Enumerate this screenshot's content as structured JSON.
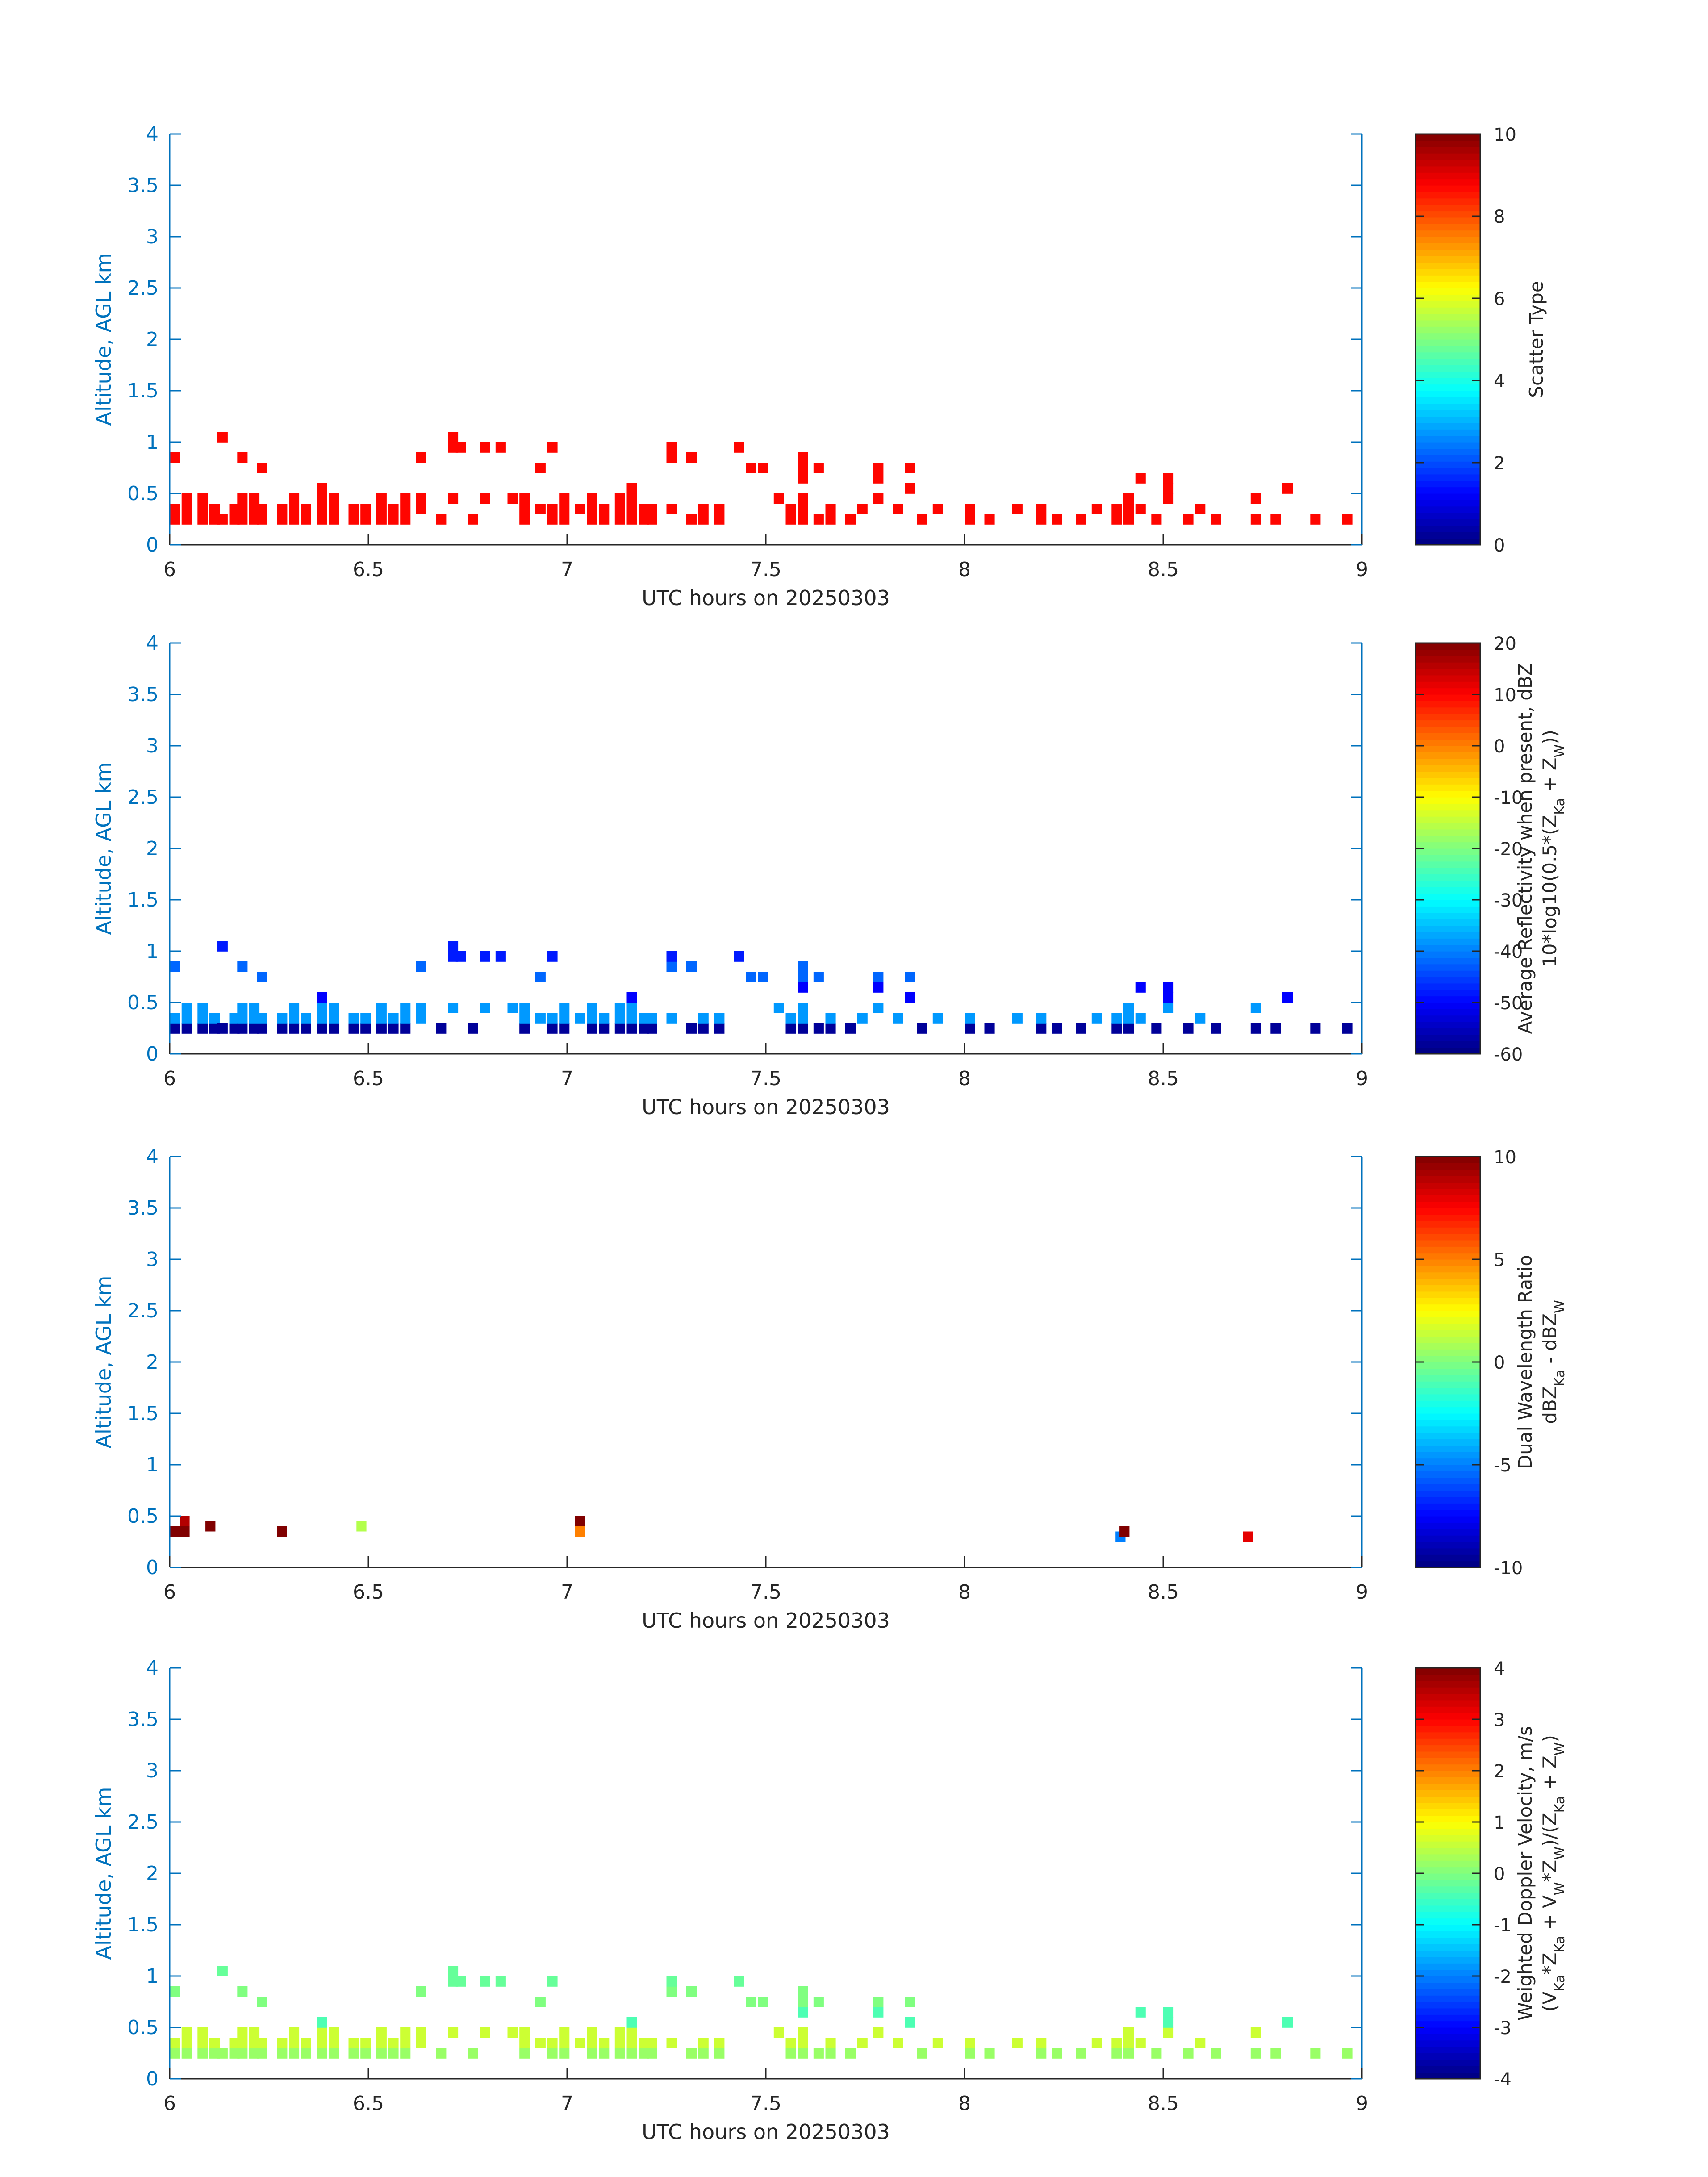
{
  "figure": {
    "axis_color": "#0072BD",
    "text_color": "#262626",
    "colormap": "jet"
  },
  "chart_data": [
    {
      "type": "heatmap",
      "panel_id": "scatter-type",
      "xlabel": "UTC hours on 20250303",
      "ylabel": "Altitude, AGL km",
      "xlim": [
        6,
        9
      ],
      "ylim": [
        0,
        4
      ],
      "xticks": [
        "6",
        "6.5",
        "7",
        "7.5",
        "8",
        "8.5",
        "9"
      ],
      "yticks": [
        "0",
        "0.5",
        "1",
        "1.5",
        "2",
        "2.5",
        "3",
        "3.5",
        "4"
      ],
      "colorbar": {
        "label_lines": [
          "Scatter Type"
        ],
        "ticks": [
          "0",
          "2",
          "4",
          "6",
          "8",
          "10"
        ],
        "range": [
          0,
          10
        ]
      },
      "cell_width_hours": 0.025,
      "cell_height_km": 0.1,
      "base_value": 8.7,
      "columns": [
        {
          "x": 6.0,
          "bins": [
            [
              0.2,
              0.4
            ],
            [
              0.8,
              0.9
            ]
          ]
        },
        {
          "x": 6.03,
          "bins": [
            [
              0.2,
              0.5
            ]
          ]
        },
        {
          "x": 6.07,
          "bins": [
            [
              0.2,
              0.5
            ]
          ]
        },
        {
          "x": 6.1,
          "bins": [
            [
              0.2,
              0.4
            ]
          ]
        },
        {
          "x": 6.12,
          "bins": [
            [
              0.2,
              0.3
            ],
            [
              1.0,
              1.1
            ]
          ]
        },
        {
          "x": 6.15,
          "bins": [
            [
              0.2,
              0.4
            ]
          ]
        },
        {
          "x": 6.17,
          "bins": [
            [
              0.2,
              0.5
            ],
            [
              0.8,
              0.9
            ]
          ]
        },
        {
          "x": 6.2,
          "bins": [
            [
              0.2,
              0.5
            ]
          ]
        },
        {
          "x": 6.22,
          "bins": [
            [
              0.2,
              0.4
            ],
            [
              0.7,
              0.8
            ]
          ]
        },
        {
          "x": 6.27,
          "bins": [
            [
              0.2,
              0.4
            ]
          ]
        },
        {
          "x": 6.3,
          "bins": [
            [
              0.2,
              0.5
            ]
          ]
        },
        {
          "x": 6.33,
          "bins": [
            [
              0.2,
              0.4
            ]
          ]
        },
        {
          "x": 6.37,
          "bins": [
            [
              0.2,
              0.6
            ]
          ]
        },
        {
          "x": 6.4,
          "bins": [
            [
              0.2,
              0.5
            ]
          ]
        },
        {
          "x": 6.45,
          "bins": [
            [
              0.2,
              0.4
            ]
          ]
        },
        {
          "x": 6.48,
          "bins": [
            [
              0.2,
              0.4
            ]
          ]
        },
        {
          "x": 6.52,
          "bins": [
            [
              0.2,
              0.5
            ]
          ]
        },
        {
          "x": 6.55,
          "bins": [
            [
              0.2,
              0.4
            ]
          ]
        },
        {
          "x": 6.58,
          "bins": [
            [
              0.2,
              0.5
            ]
          ]
        },
        {
          "x": 6.62,
          "bins": [
            [
              0.3,
              0.5
            ],
            [
              0.8,
              0.9
            ]
          ]
        },
        {
          "x": 6.67,
          "bins": [
            [
              0.2,
              0.3
            ]
          ]
        },
        {
          "x": 6.7,
          "bins": [
            [
              0.4,
              0.5
            ],
            [
              0.9,
              1.1
            ]
          ]
        },
        {
          "x": 6.72,
          "bins": [
            [
              0.9,
              1.0
            ]
          ]
        },
        {
          "x": 6.75,
          "bins": [
            [
              0.2,
              0.3
            ]
          ]
        },
        {
          "x": 6.78,
          "bins": [
            [
              0.4,
              0.5
            ],
            [
              0.9,
              1.0
            ]
          ]
        },
        {
          "x": 6.82,
          "bins": [
            [
              0.9,
              1.0
            ]
          ]
        },
        {
          "x": 6.85,
          "bins": [
            [
              0.4,
              0.5
            ]
          ]
        },
        {
          "x": 6.88,
          "bins": [
            [
              0.2,
              0.5
            ]
          ]
        },
        {
          "x": 6.92,
          "bins": [
            [
              0.3,
              0.4
            ],
            [
              0.7,
              0.8
            ]
          ]
        },
        {
          "x": 6.95,
          "bins": [
            [
              0.2,
              0.4
            ],
            [
              0.9,
              1.0
            ]
          ]
        },
        {
          "x": 6.98,
          "bins": [
            [
              0.2,
              0.5
            ]
          ]
        },
        {
          "x": 7.02,
          "bins": [
            [
              0.3,
              0.4
            ]
          ]
        },
        {
          "x": 7.05,
          "bins": [
            [
              0.2,
              0.5
            ]
          ]
        },
        {
          "x": 7.08,
          "bins": [
            [
              0.2,
              0.4
            ]
          ]
        },
        {
          "x": 7.12,
          "bins": [
            [
              0.2,
              0.5
            ]
          ]
        },
        {
          "x": 7.15,
          "bins": [
            [
              0.2,
              0.6
            ]
          ]
        },
        {
          "x": 7.18,
          "bins": [
            [
              0.2,
              0.4
            ]
          ]
        },
        {
          "x": 7.2,
          "bins": [
            [
              0.2,
              0.4
            ]
          ]
        },
        {
          "x": 7.25,
          "bins": [
            [
              0.3,
              0.4
            ],
            [
              0.8,
              1.0
            ]
          ]
        },
        {
          "x": 7.3,
          "bins": [
            [
              0.2,
              0.3
            ],
            [
              0.8,
              0.9
            ]
          ]
        },
        {
          "x": 7.33,
          "bins": [
            [
              0.2,
              0.4
            ]
          ]
        },
        {
          "x": 7.37,
          "bins": [
            [
              0.2,
              0.4
            ]
          ]
        },
        {
          "x": 7.42,
          "bins": [
            [
              0.9,
              1.0
            ]
          ]
        },
        {
          "x": 7.45,
          "bins": [
            [
              0.7,
              0.8
            ]
          ]
        },
        {
          "x": 7.48,
          "bins": [
            [
              0.7,
              0.8
            ]
          ]
        },
        {
          "x": 7.52,
          "bins": [
            [
              0.4,
              0.5
            ]
          ]
        },
        {
          "x": 7.55,
          "bins": [
            [
              0.2,
              0.4
            ]
          ]
        },
        {
          "x": 7.58,
          "bins": [
            [
              0.2,
              0.5
            ],
            [
              0.6,
              0.9
            ]
          ]
        },
        {
          "x": 7.62,
          "bins": [
            [
              0.2,
              0.3
            ],
            [
              0.7,
              0.8
            ]
          ]
        },
        {
          "x": 7.65,
          "bins": [
            [
              0.2,
              0.4
            ]
          ]
        },
        {
          "x": 7.7,
          "bins": [
            [
              0.2,
              0.3
            ]
          ]
        },
        {
          "x": 7.73,
          "bins": [
            [
              0.3,
              0.4
            ]
          ]
        },
        {
          "x": 7.77,
          "bins": [
            [
              0.4,
              0.5
            ],
            [
              0.6,
              0.8
            ]
          ]
        },
        {
          "x": 7.82,
          "bins": [
            [
              0.3,
              0.4
            ]
          ]
        },
        {
          "x": 7.85,
          "bins": [
            [
              0.5,
              0.6
            ],
            [
              0.7,
              0.8
            ]
          ]
        },
        {
          "x": 7.88,
          "bins": [
            [
              0.2,
              0.3
            ]
          ]
        },
        {
          "x": 7.92,
          "bins": [
            [
              0.3,
              0.4
            ]
          ]
        },
        {
          "x": 8.0,
          "bins": [
            [
              0.2,
              0.4
            ]
          ]
        },
        {
          "x": 8.05,
          "bins": [
            [
              0.2,
              0.3
            ]
          ]
        },
        {
          "x": 8.12,
          "bins": [
            [
              0.3,
              0.4
            ]
          ]
        },
        {
          "x": 8.18,
          "bins": [
            [
              0.2,
              0.4
            ]
          ]
        },
        {
          "x": 8.22,
          "bins": [
            [
              0.2,
              0.3
            ]
          ]
        },
        {
          "x": 8.28,
          "bins": [
            [
              0.2,
              0.3
            ]
          ]
        },
        {
          "x": 8.32,
          "bins": [
            [
              0.3,
              0.4
            ]
          ]
        },
        {
          "x": 8.37,
          "bins": [
            [
              0.2,
              0.4
            ]
          ]
        },
        {
          "x": 8.4,
          "bins": [
            [
              0.2,
              0.5
            ]
          ]
        },
        {
          "x": 8.43,
          "bins": [
            [
              0.3,
              0.4
            ],
            [
              0.6,
              0.7
            ]
          ]
        },
        {
          "x": 8.47,
          "bins": [
            [
              0.2,
              0.3
            ]
          ]
        },
        {
          "x": 8.5,
          "bins": [
            [
              0.4,
              0.7
            ]
          ]
        },
        {
          "x": 8.55,
          "bins": [
            [
              0.2,
              0.3
            ]
          ]
        },
        {
          "x": 8.58,
          "bins": [
            [
              0.3,
              0.4
            ]
          ]
        },
        {
          "x": 8.62,
          "bins": [
            [
              0.2,
              0.3
            ]
          ]
        },
        {
          "x": 8.72,
          "bins": [
            [
              0.2,
              0.3
            ],
            [
              0.4,
              0.5
            ]
          ]
        },
        {
          "x": 8.77,
          "bins": [
            [
              0.2,
              0.3
            ]
          ]
        },
        {
          "x": 8.8,
          "bins": [
            [
              0.5,
              0.6
            ]
          ]
        },
        {
          "x": 8.87,
          "bins": [
            [
              0.2,
              0.3
            ]
          ]
        },
        {
          "x": 8.95,
          "bins": [
            [
              0.2,
              0.3
            ]
          ]
        }
      ]
    },
    {
      "type": "heatmap",
      "panel_id": "reflectivity",
      "xlabel": "UTC hours on 20250303",
      "ylabel": "Altitude, AGL km",
      "xlim": [
        6,
        9
      ],
      "ylim": [
        0,
        4
      ],
      "xticks": [
        "6",
        "6.5",
        "7",
        "7.5",
        "8",
        "8.5",
        "9"
      ],
      "yticks": [
        "0",
        "0.5",
        "1",
        "1.5",
        "2",
        "2.5",
        "3",
        "3.5",
        "4"
      ],
      "colorbar": {
        "label_lines": [
          "Average Reflectivity when present, dBZ",
          "10*log10(0.5*(Z_Ka + Z_W))"
        ],
        "ticks": [
          "-60",
          "-50",
          "-40",
          "-30",
          "-20",
          "-10",
          "0",
          "10",
          "20"
        ],
        "range": [
          -60,
          20
        ]
      },
      "cell_width_hours": 0.025,
      "cell_height_km": 0.1,
      "color_by_altitude": [
        {
          "below_km": 0.3,
          "value": -58
        },
        {
          "below_km": 0.5,
          "value": -38
        },
        {
          "below_km": 0.7,
          "value": -50
        },
        {
          "below_km": 0.9,
          "value": -42
        },
        {
          "below_km": 1.2,
          "value": -48
        }
      ],
      "columns": "same_as_panel:scatter-type"
    },
    {
      "type": "heatmap",
      "panel_id": "dual-wavelength-ratio",
      "xlabel": "UTC hours on 20250303",
      "ylabel": "Altitude, AGL km",
      "xlim": [
        6,
        9
      ],
      "ylim": [
        0,
        4
      ],
      "xticks": [
        "6",
        "6.5",
        "7",
        "7.5",
        "8",
        "8.5",
        "9"
      ],
      "yticks": [
        "0",
        "0.5",
        "1",
        "1.5",
        "2",
        "2.5",
        "3",
        "3.5",
        "4"
      ],
      "colorbar": {
        "label_lines": [
          "Dual Wavelength Ratio",
          "dBZ_Ka - dBZ_W"
        ],
        "ticks": [
          "-10",
          "-5",
          "0",
          "5",
          "10"
        ],
        "range": [
          -10,
          10
        ]
      },
      "cell_width_hours": 0.025,
      "cell_height_km": 0.1,
      "cells": [
        {
          "x": 6.0,
          "y": 0.3,
          "value": 10
        },
        {
          "x": 6.025,
          "y": 0.3,
          "value": 10
        },
        {
          "x": 6.025,
          "y": 0.4,
          "value": 9
        },
        {
          "x": 6.09,
          "y": 0.35,
          "value": 10
        },
        {
          "x": 6.27,
          "y": 0.3,
          "value": 10
        },
        {
          "x": 6.47,
          "y": 0.35,
          "value": 1
        },
        {
          "x": 7.02,
          "y": 0.4,
          "value": 10
        },
        {
          "x": 7.02,
          "y": 0.3,
          "value": 5
        },
        {
          "x": 8.38,
          "y": 0.25,
          "value": -5
        },
        {
          "x": 8.39,
          "y": 0.3,
          "value": 10
        },
        {
          "x": 8.7,
          "y": 0.25,
          "value": 8
        }
      ]
    },
    {
      "type": "heatmap",
      "panel_id": "doppler-velocity",
      "xlabel": "UTC hours on 20250303",
      "ylabel": "Altitude, AGL km",
      "xlim": [
        6,
        9
      ],
      "ylim": [
        0,
        4
      ],
      "xticks": [
        "6",
        "6.5",
        "7",
        "7.5",
        "8",
        "8.5",
        "9"
      ],
      "yticks": [
        "0",
        "0.5",
        "1",
        "1.5",
        "2",
        "2.5",
        "3",
        "3.5",
        "4"
      ],
      "colorbar": {
        "label_lines": [
          "Weighted Doppler Velocity, m/s",
          "(V_Ka*Z_Ka + V_W*Z_W)/(Z_Ka + Z_W)"
        ],
        "ticks": [
          "-4",
          "-3",
          "-2",
          "-1",
          "0",
          "1",
          "2",
          "3",
          "4"
        ],
        "range": [
          -4,
          4
        ]
      },
      "cell_width_hours": 0.025,
      "cell_height_km": 0.1,
      "color_by_altitude": [
        {
          "below_km": 0.3,
          "value": 0.2
        },
        {
          "below_km": 0.5,
          "value": 0.6
        },
        {
          "below_km": 0.7,
          "value": -0.4
        },
        {
          "below_km": 0.9,
          "value": 0.0
        },
        {
          "below_km": 1.2,
          "value": -0.2
        }
      ],
      "columns": "same_as_panel:scatter-type"
    }
  ]
}
